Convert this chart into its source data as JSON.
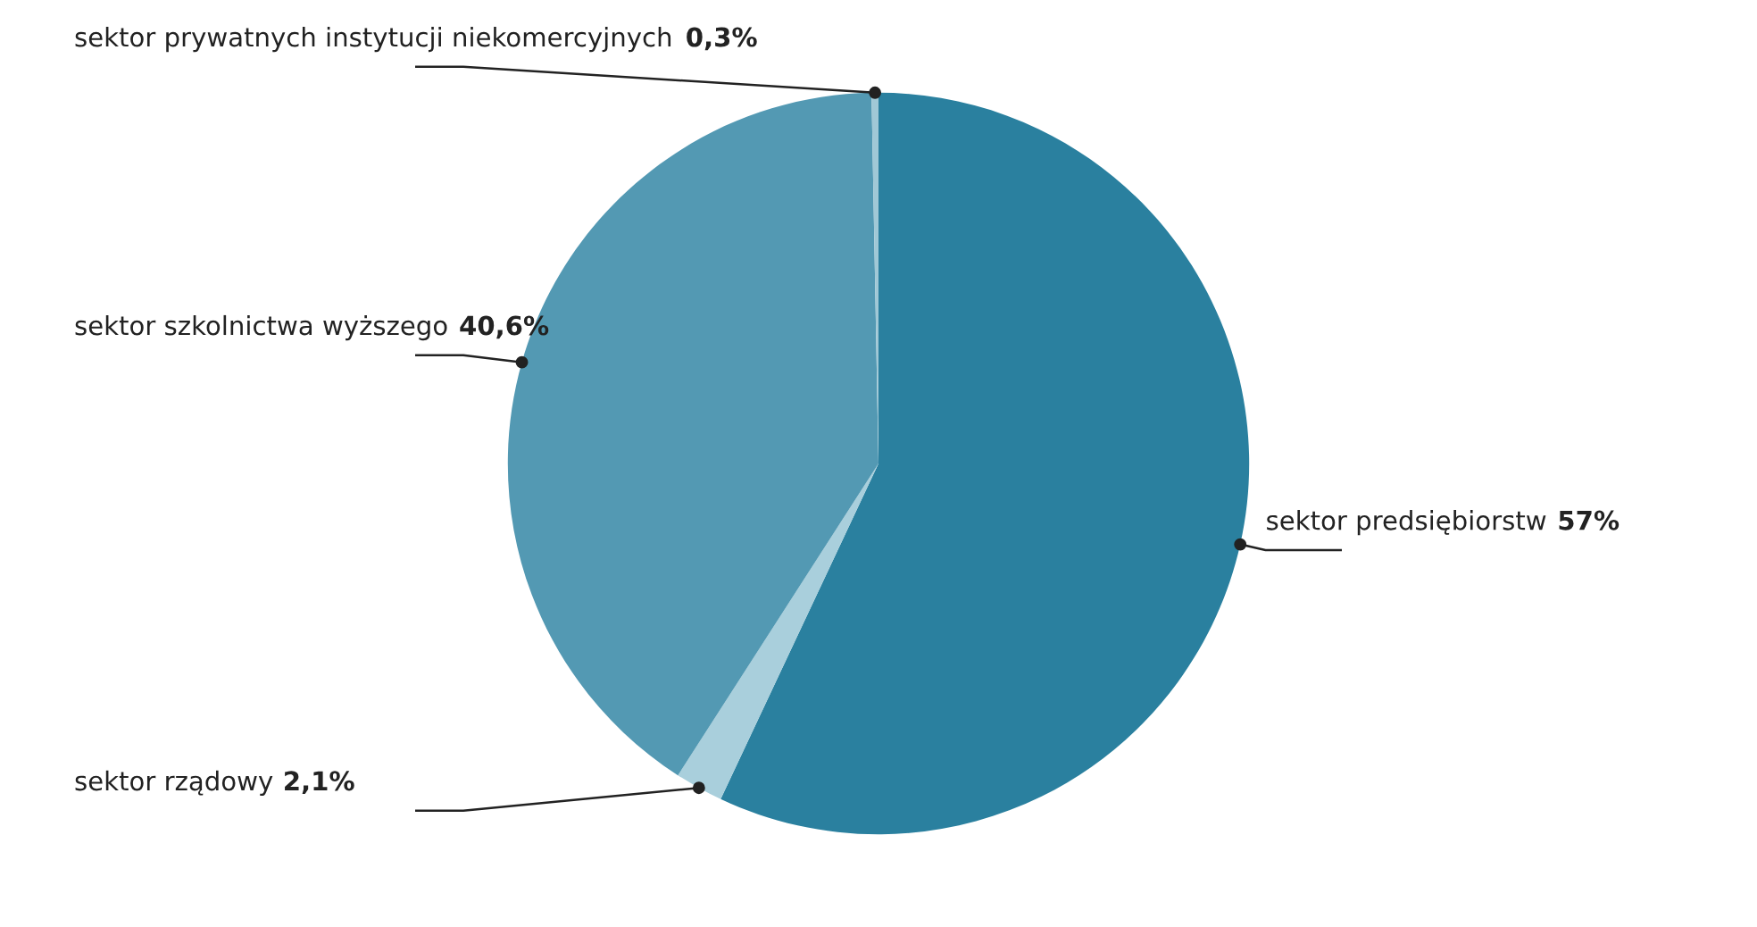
{
  "chart_data": {
    "type": "pie",
    "categories": [
      "sektor predsiębiorstw",
      "sektor rządowy",
      "sektor szkolnictwa wyższego",
      "sektor prywatnych instytucji niekomercyjnych"
    ],
    "values": [
      57,
      2.1,
      40.6,
      0.3
    ],
    "value_labels": [
      "57%",
      "2,1%",
      "40,6%",
      "0,3%"
    ],
    "colors": [
      "#2a809f",
      "#a9cfdc",
      "#5399b3",
      "#a0c8d6"
    ]
  }
}
